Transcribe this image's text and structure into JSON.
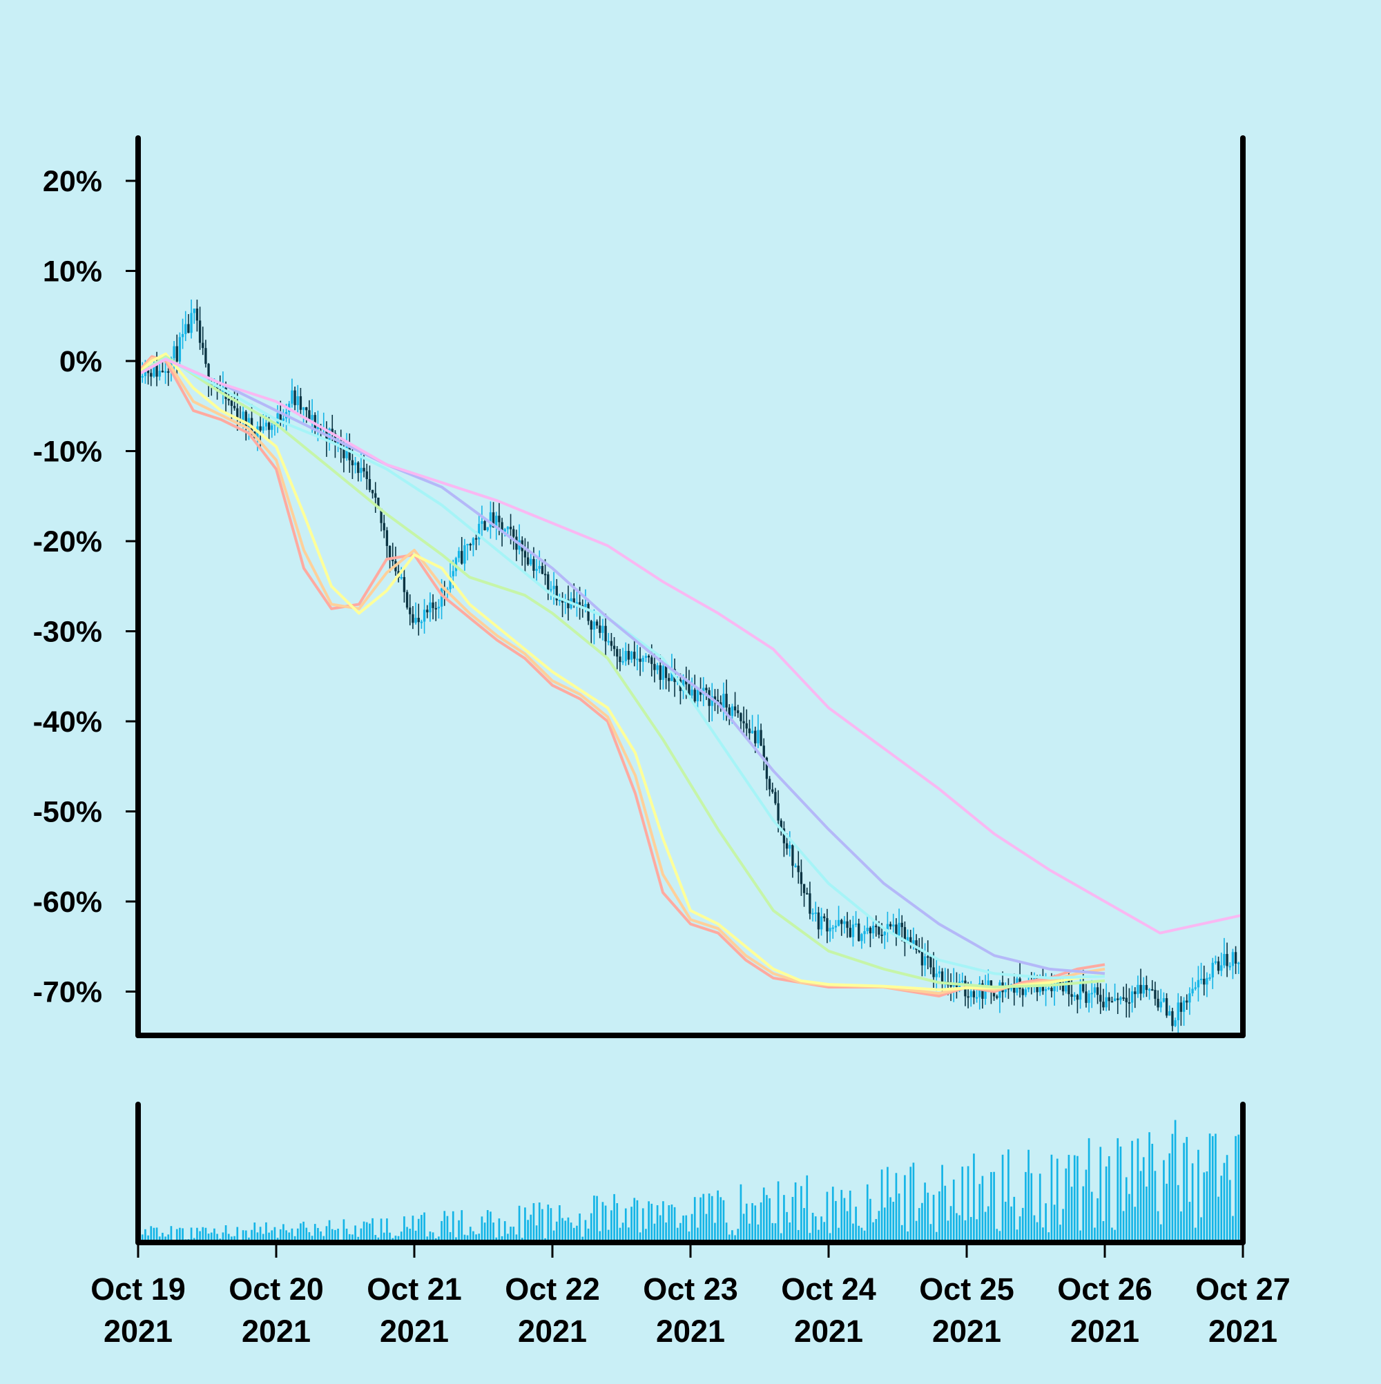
{
  "colors": {
    "background": "#c9eff6",
    "axis": "#000000",
    "candle_up": "#14b4e6",
    "candle_down": "#0a3443",
    "volume": "#14b4e6"
  },
  "chart_data": {
    "type": "candlestick",
    "title": "",
    "xlabel": "",
    "ylabel": "",
    "x_range": [
      "2021-10-19",
      "2021-10-27"
    ],
    "ylim": [
      -75,
      25
    ],
    "y_unit": "%",
    "y_ticks": [
      20,
      10,
      0,
      -10,
      -20,
      -30,
      -40,
      -50,
      -60,
      -70
    ],
    "y_tick_labels": [
      "20%",
      "10%",
      "0%",
      "-10%",
      "-20%",
      "-30%",
      "-40%",
      "-50%",
      "-60%",
      "-70%"
    ],
    "x_ticks": [
      {
        "date": "2021-10-19",
        "line1": "Oct 19",
        "line2": "2021"
      },
      {
        "date": "2021-10-20",
        "line1": "Oct 20",
        "line2": "2021"
      },
      {
        "date": "2021-10-21",
        "line1": "Oct 21",
        "line2": "2021"
      },
      {
        "date": "2021-10-22",
        "line1": "Oct 22",
        "line2": "2021"
      },
      {
        "date": "2021-10-23",
        "line1": "Oct 23",
        "line2": "2021"
      },
      {
        "date": "2021-10-24",
        "line1": "Oct 24",
        "line2": "2021"
      },
      {
        "date": "2021-10-25",
        "line1": "Oct 25",
        "line2": "2021"
      },
      {
        "date": "2021-10-26",
        "line1": "Oct 26",
        "line2": "2021"
      },
      {
        "date": "2021-10-27",
        "line1": "Oct 27",
        "line2": "2021"
      }
    ],
    "close_path": [
      [
        "2021-10-19 00:00",
        -0.5
      ],
      [
        "2021-10-19 04:00",
        -1.2
      ],
      [
        "2021-10-19 07:00",
        1.0
      ],
      [
        "2021-10-19 10:00",
        5.0
      ],
      [
        "2021-10-19 12:00",
        -1.0
      ],
      [
        "2021-10-19 15:00",
        -4.0
      ],
      [
        "2021-10-19 20:00",
        -7.5
      ],
      [
        "2021-10-20 00:00",
        -7.0
      ],
      [
        "2021-10-20 03:00",
        -4.0
      ],
      [
        "2021-10-20 06:00",
        -6.5
      ],
      [
        "2021-10-20 10:00",
        -8.5
      ],
      [
        "2021-10-20 14:00",
        -11.0
      ],
      [
        "2021-10-20 18:00",
        -17.0
      ],
      [
        "2021-10-20 22:00",
        -25.0
      ],
      [
        "2021-10-21 01:00",
        -29.5
      ],
      [
        "2021-10-21 04:00",
        -27.0
      ],
      [
        "2021-10-21 08:00",
        -22.0
      ],
      [
        "2021-10-21 13:00",
        -17.5
      ],
      [
        "2021-10-21 18:00",
        -20.0
      ],
      [
        "2021-10-22 00:00",
        -25.0
      ],
      [
        "2021-10-22 06:00",
        -28.0
      ],
      [
        "2021-10-22 12:00",
        -32.5
      ],
      [
        "2021-10-22 18:00",
        -34.0
      ],
      [
        "2021-10-23 00:00",
        -36.5
      ],
      [
        "2021-10-23 06:00",
        -38.0
      ],
      [
        "2021-10-23 12:00",
        -42.0
      ],
      [
        "2021-10-23 16:00",
        -52.0
      ],
      [
        "2021-10-23 22:00",
        -62.0
      ],
      [
        "2021-10-24 06:00",
        -63.5
      ],
      [
        "2021-10-24 12:00",
        -63.0
      ],
      [
        "2021-10-24 18:00",
        -67.5
      ],
      [
        "2021-10-25 00:00",
        -70.0
      ],
      [
        "2021-10-25 08:00",
        -69.5
      ],
      [
        "2021-10-25 16:00",
        -69.0
      ],
      [
        "2021-10-26 00:00",
        -71.0
      ],
      [
        "2021-10-26 08:00",
        -69.5
      ],
      [
        "2021-10-26 12:00",
        -73.0
      ],
      [
        "2021-10-26 16:00",
        -70.0
      ],
      [
        "2021-10-26 20:00",
        -67.0
      ],
      [
        "2021-10-27 00:00",
        -66.0
      ]
    ],
    "moving_averages": [
      {
        "color": "#ffaaa0",
        "values": [
          [
            0,
            -1.2
          ],
          [
            0.1,
            0.5
          ],
          [
            0.2,
            0.0
          ],
          [
            0.4,
            -5.5
          ],
          [
            0.6,
            -6.5
          ],
          [
            0.8,
            -8.0
          ],
          [
            1.0,
            -12.0
          ],
          [
            1.2,
            -23.0
          ],
          [
            1.4,
            -27.5
          ],
          [
            1.6,
            -27.0
          ],
          [
            1.8,
            -22.0
          ],
          [
            2.0,
            -21.5
          ],
          [
            2.2,
            -26.0
          ],
          [
            2.4,
            -28.5
          ],
          [
            2.6,
            -31.0
          ],
          [
            2.8,
            -33.0
          ],
          [
            3.0,
            -36.0
          ],
          [
            3.2,
            -37.5
          ],
          [
            3.4,
            -40.0
          ],
          [
            3.6,
            -48.0
          ],
          [
            3.8,
            -59.0
          ],
          [
            4.0,
            -62.5
          ],
          [
            4.2,
            -63.5
          ],
          [
            4.4,
            -66.5
          ],
          [
            4.6,
            -68.5
          ],
          [
            4.8,
            -69.0
          ],
          [
            5.0,
            -69.5
          ],
          [
            5.4,
            -69.5
          ],
          [
            5.8,
            -70.5
          ],
          [
            6.0,
            -69.5
          ],
          [
            6.2,
            -70.0
          ],
          [
            6.4,
            -69.0
          ],
          [
            6.6,
            -68.5
          ],
          [
            6.8,
            -67.5
          ],
          [
            7.0,
            -67.0
          ]
        ]
      },
      {
        "color": "#ffd09a",
        "values": [
          [
            0,
            -1.3
          ],
          [
            0.1,
            0.3
          ],
          [
            0.2,
            0.3
          ],
          [
            0.4,
            -4.5
          ],
          [
            0.6,
            -6.0
          ],
          [
            0.8,
            -7.5
          ],
          [
            1.0,
            -11.0
          ],
          [
            1.2,
            -21.0
          ],
          [
            1.4,
            -27.0
          ],
          [
            1.6,
            -27.5
          ],
          [
            1.8,
            -23.5
          ],
          [
            2.0,
            -21.0
          ],
          [
            2.2,
            -25.0
          ],
          [
            2.4,
            -28.0
          ],
          [
            2.6,
            -30.5
          ],
          [
            2.8,
            -32.5
          ],
          [
            3.0,
            -35.5
          ],
          [
            3.2,
            -37.0
          ],
          [
            3.4,
            -39.5
          ],
          [
            3.6,
            -46.0
          ],
          [
            3.8,
            -57.0
          ],
          [
            4.0,
            -62.0
          ],
          [
            4.2,
            -63.0
          ],
          [
            4.4,
            -66.0
          ],
          [
            4.6,
            -68.0
          ],
          [
            4.8,
            -69.0
          ],
          [
            5.0,
            -69.3
          ],
          [
            5.4,
            -69.5
          ],
          [
            5.8,
            -70.2
          ],
          [
            6.0,
            -69.5
          ],
          [
            6.2,
            -69.8
          ],
          [
            6.4,
            -69.2
          ],
          [
            6.6,
            -68.8
          ],
          [
            6.8,
            -68.0
          ],
          [
            7.0,
            -67.5
          ]
        ]
      },
      {
        "color": "#ffff9a",
        "values": [
          [
            0,
            -1.4
          ],
          [
            0.1,
            0.0
          ],
          [
            0.2,
            0.8
          ],
          [
            0.4,
            -3.0
          ],
          [
            0.6,
            -5.5
          ],
          [
            0.8,
            -7.0
          ],
          [
            1.0,
            -9.5
          ],
          [
            1.2,
            -17.0
          ],
          [
            1.4,
            -25.0
          ],
          [
            1.6,
            -28.0
          ],
          [
            1.8,
            -25.5
          ],
          [
            2.0,
            -21.5
          ],
          [
            2.2,
            -23.0
          ],
          [
            2.4,
            -27.0
          ],
          [
            2.6,
            -29.5
          ],
          [
            2.8,
            -32.0
          ],
          [
            3.0,
            -34.5
          ],
          [
            3.2,
            -36.5
          ],
          [
            3.4,
            -38.5
          ],
          [
            3.6,
            -43.5
          ],
          [
            3.8,
            -53.0
          ],
          [
            4.0,
            -61.0
          ],
          [
            4.2,
            -62.5
          ],
          [
            4.4,
            -65.0
          ],
          [
            4.6,
            -67.5
          ],
          [
            4.8,
            -68.8
          ],
          [
            5.0,
            -69.2
          ],
          [
            5.4,
            -69.4
          ],
          [
            5.8,
            -69.8
          ],
          [
            6.0,
            -69.6
          ],
          [
            6.2,
            -69.6
          ],
          [
            6.4,
            -69.3
          ],
          [
            6.6,
            -69.0
          ],
          [
            6.8,
            -68.5
          ],
          [
            7.0,
            -68.2
          ]
        ]
      },
      {
        "color": "#c6f5a8",
        "values": [
          [
            0,
            -1.5
          ],
          [
            0.2,
            0.5
          ],
          [
            0.6,
            -3.5
          ],
          [
            1.0,
            -7.0
          ],
          [
            1.4,
            -12.0
          ],
          [
            1.8,
            -17.0
          ],
          [
            2.2,
            -21.5
          ],
          [
            2.4,
            -24.0
          ],
          [
            2.8,
            -26.0
          ],
          [
            3.0,
            -28.0
          ],
          [
            3.4,
            -33.0
          ],
          [
            3.8,
            -42.0
          ],
          [
            4.2,
            -52.0
          ],
          [
            4.6,
            -61.0
          ],
          [
            5.0,
            -65.5
          ],
          [
            5.4,
            -67.5
          ],
          [
            5.8,
            -69.0
          ],
          [
            6.2,
            -69.5
          ],
          [
            6.6,
            -69.3
          ],
          [
            7.0,
            -68.8
          ]
        ]
      },
      {
        "color": "#a6f4f7",
        "values": [
          [
            0,
            -1.5
          ],
          [
            0.2,
            0.3
          ],
          [
            0.6,
            -3.0
          ],
          [
            1.0,
            -6.5
          ],
          [
            1.4,
            -9.0
          ],
          [
            1.8,
            -12.0
          ],
          [
            2.2,
            -16.0
          ],
          [
            2.6,
            -21.0
          ],
          [
            3.0,
            -26.0
          ],
          [
            3.4,
            -28.5
          ],
          [
            3.8,
            -33.0
          ],
          [
            4.2,
            -42.0
          ],
          [
            4.6,
            -51.0
          ],
          [
            5.0,
            -58.0
          ],
          [
            5.4,
            -63.0
          ],
          [
            5.8,
            -66.5
          ],
          [
            6.2,
            -68.0
          ],
          [
            6.6,
            -68.5
          ],
          [
            7.0,
            -68.3
          ]
        ]
      },
      {
        "color": "#b4b8f8",
        "values": [
          [
            0,
            -1.5
          ],
          [
            0.2,
            0.2
          ],
          [
            0.6,
            -2.5
          ],
          [
            1.0,
            -5.5
          ],
          [
            1.4,
            -8.5
          ],
          [
            1.8,
            -11.5
          ],
          [
            2.2,
            -14.0
          ],
          [
            2.6,
            -18.5
          ],
          [
            3.0,
            -23.0
          ],
          [
            3.4,
            -28.5
          ],
          [
            3.8,
            -33.5
          ],
          [
            4.2,
            -38.0
          ],
          [
            4.6,
            -45.5
          ],
          [
            5.0,
            -52.0
          ],
          [
            5.4,
            -58.0
          ],
          [
            5.8,
            -62.5
          ],
          [
            6.2,
            -66.0
          ],
          [
            6.6,
            -67.5
          ],
          [
            7.0,
            -68.0
          ]
        ]
      },
      {
        "color": "#f9b8f2",
        "values": [
          [
            0,
            -1.5
          ],
          [
            0.2,
            0.2
          ],
          [
            0.6,
            -2.5
          ],
          [
            1.0,
            -4.5
          ],
          [
            1.4,
            -8.0
          ],
          [
            1.8,
            -11.5
          ],
          [
            2.2,
            -13.5
          ],
          [
            2.6,
            -15.5
          ],
          [
            3.0,
            -18.0
          ],
          [
            3.4,
            -20.5
          ],
          [
            3.8,
            -24.5
          ],
          [
            4.2,
            -28.0
          ],
          [
            4.6,
            -32.0
          ],
          [
            5.0,
            -38.5
          ],
          [
            5.4,
            -43.0
          ],
          [
            5.8,
            -47.5
          ],
          [
            6.2,
            -52.5
          ],
          [
            6.6,
            -56.5
          ],
          [
            7.0,
            -60.0
          ],
          [
            7.4,
            -63.5
          ],
          [
            8.0,
            -61.5
          ]
        ]
      }
    ],
    "volume_relative": [
      0.12,
      0.12,
      0.14,
      0.14,
      0.16,
      0.16,
      0.18,
      0.18,
      0.2,
      0.2,
      0.22,
      0.24,
      0.26,
      0.28,
      0.3,
      0.32,
      0.34,
      0.36,
      0.38,
      0.4,
      0.42,
      0.44,
      0.46,
      0.48,
      0.5,
      0.52,
      0.55,
      0.58,
      0.6,
      0.62,
      0.66,
      0.7,
      0.74,
      0.78,
      0.82,
      0.86,
      0.88,
      0.9,
      0.92,
      0.94
    ]
  }
}
